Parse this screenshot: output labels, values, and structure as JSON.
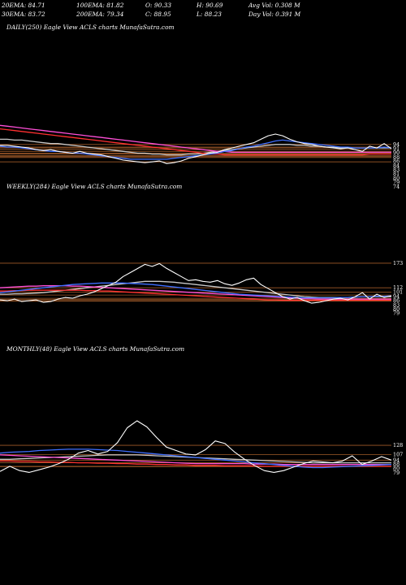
{
  "stats": {
    "ema20": "20EMA: 84.71",
    "ema100": "100EMA: 81.82",
    "open": "O: 90.33",
    "high": "H: 90.69",
    "avg_vol": "Avg Vol: 0.308 M",
    "ema30": "30EMA: 83.72",
    "ema200": "200EMA: 79.34",
    "close": "C: 88.95",
    "low": "L: 88.23",
    "day_vol": "Day Vol: 0.391 M"
  },
  "colors": {
    "background": "#000000",
    "price": "#ffffff",
    "ema_blue": "#3f6fff",
    "ema_magenta": "#ff4fd8",
    "ema_red": "#ff3030",
    "ema_grey": "#c8c8c8",
    "level_line": "#a05a28"
  },
  "chart_data": [
    {
      "type": "line",
      "title": "DAILY(250) Eagle  View  ACLS charts MunafaSutra.com",
      "tick_labels": [
        "94",
        "91",
        "90",
        "88",
        "86",
        "84",
        "83",
        "81",
        "80",
        "79",
        "74"
      ],
      "price_range": [
        62,
        120
      ],
      "levels": [
        94,
        91,
        90,
        88,
        86,
        84,
        83,
        81,
        80,
        79,
        74
      ],
      "series": [
        {
          "role": "price",
          "values": [
            93,
            93,
            92,
            91,
            90,
            88,
            87,
            88,
            86,
            85,
            84,
            86,
            84,
            83,
            82,
            80,
            78,
            76,
            75,
            74,
            73,
            74,
            75,
            72,
            73,
            75,
            78,
            80,
            82,
            84,
            85,
            88,
            90,
            92,
            94,
            96,
            100,
            104,
            106,
            104,
            100,
            97,
            95,
            94,
            92,
            91,
            90,
            89,
            90,
            88,
            86,
            92,
            90,
            95,
            89
          ]
        },
        {
          "role": "ema_blue",
          "values": [
            92,
            91,
            91,
            90,
            89,
            88,
            87,
            86,
            86,
            85,
            84,
            84,
            83,
            82,
            81,
            80,
            79,
            78,
            77,
            77,
            77,
            77,
            77,
            77,
            78,
            79,
            80,
            81,
            82,
            83,
            84,
            86,
            87,
            89,
            91,
            92,
            94,
            96,
            98,
            99,
            98,
            97,
            96,
            95,
            94,
            93,
            92,
            91,
            91,
            90,
            90,
            90,
            90,
            91,
            90
          ]
        },
        {
          "role": "ema_magenta",
          "values": [
            116,
            115,
            114,
            113,
            112,
            111,
            110,
            109,
            108,
            107,
            106,
            105,
            104,
            103,
            102,
            101,
            100,
            99,
            98,
            97,
            96,
            95,
            94,
            93,
            92,
            91,
            90,
            89,
            88,
            87,
            86,
            86,
            85,
            85,
            85,
            85,
            85,
            85,
            85,
            85,
            85,
            85,
            85,
            85,
            85,
            85,
            85,
            85,
            85,
            85,
            85,
            85,
            85,
            85,
            85
          ]
        },
        {
          "role": "ema_red",
          "values": [
            112,
            111,
            110,
            109,
            108,
            107,
            106,
            105,
            104,
            103,
            102,
            101,
            100,
            99,
            98,
            97,
            96,
            95,
            94,
            93,
            92,
            91,
            90,
            89,
            88,
            87,
            86,
            85,
            84,
            83,
            83,
            82,
            82,
            82,
            82,
            82,
            82,
            82,
            82,
            82,
            82,
            82,
            82,
            82,
            82,
            82,
            82,
            82,
            82,
            82,
            82,
            83,
            83,
            83,
            83
          ]
        },
        {
          "role": "ema_grey",
          "values": [
            100,
            100,
            99,
            99,
            98,
            97,
            96,
            95,
            95,
            94,
            93,
            92,
            91,
            90,
            89,
            88,
            87,
            86,
            85,
            84,
            84,
            83,
            83,
            82,
            82,
            82,
            83,
            83,
            84,
            85,
            86,
            87,
            88,
            89,
            90,
            91,
            92,
            93,
            94,
            94,
            94,
            93,
            93,
            92,
            92,
            91,
            91,
            90,
            90,
            90,
            90,
            90,
            90,
            90,
            90
          ]
        }
      ]
    },
    {
      "type": "line",
      "title": "WEEKLY(284) Eagle  View  ACLS charts MunafaSutra.com",
      "tick_labels": [
        "173",
        "112",
        "101",
        "94",
        "86",
        "83",
        "80",
        "79"
      ],
      "price_range": [
        60,
        185
      ],
      "levels": [
        173,
        112,
        101,
        94,
        86,
        83,
        80,
        79
      ],
      "series": [
        {
          "role": "price",
          "values": [
            82,
            80,
            84,
            78,
            80,
            82,
            76,
            78,
            84,
            88,
            86,
            92,
            96,
            102,
            110,
            118,
            126,
            140,
            150,
            160,
            170,
            165,
            172,
            160,
            150,
            140,
            130,
            132,
            128,
            126,
            130,
            122,
            118,
            124,
            132,
            136,
            120,
            110,
            100,
            90,
            84,
            88,
            80,
            74,
            76,
            80,
            84,
            86,
            82,
            90,
            100,
            84,
            96,
            88,
            92
          ]
        },
        {
          "role": "ema_blue",
          "values": [
            100,
            102,
            104,
            106,
            108,
            110,
            112,
            114,
            116,
            118,
            120,
            121,
            122,
            123,
            124,
            124,
            124,
            124,
            123,
            122,
            121,
            120,
            118,
            116,
            114,
            112,
            110,
            108,
            106,
            104,
            102,
            100,
            98,
            96,
            95,
            94,
            93,
            92,
            91,
            90,
            89,
            88,
            87,
            87,
            87,
            87,
            87,
            88,
            88,
            89,
            90,
            90,
            91,
            91,
            92
          ]
        },
        {
          "role": "ema_magenta",
          "values": [
            112,
            113,
            114,
            115,
            116,
            116,
            117,
            117,
            117,
            117,
            116,
            116,
            115,
            114,
            113,
            112,
            111,
            110,
            109,
            108,
            107,
            106,
            105,
            104,
            103,
            102,
            101,
            100,
            99,
            98,
            97,
            96,
            95,
            94,
            93,
            92,
            91,
            90,
            89,
            88,
            87,
            86,
            85,
            85,
            84,
            84,
            84,
            84,
            84,
            84,
            84,
            84,
            84,
            84,
            84
          ]
        },
        {
          "role": "ema_red",
          "values": [
            104,
            104,
            105,
            105,
            106,
            106,
            106,
            106,
            106,
            106,
            106,
            106,
            105,
            105,
            104,
            104,
            103,
            102,
            101,
            100,
            99,
            98,
            97,
            96,
            95,
            94,
            93,
            92,
            91,
            90,
            89,
            88,
            87,
            86,
            85,
            84,
            83,
            82,
            82,
            81,
            81,
            81,
            81,
            81,
            81,
            81,
            81,
            81,
            81,
            81,
            81,
            81,
            81,
            81,
            81
          ]
        },
        {
          "role": "ema_grey",
          "values": [
            96,
            96,
            97,
            97,
            98,
            99,
            100,
            102,
            104,
            106,
            108,
            110,
            112,
            114,
            116,
            118,
            120,
            122,
            124,
            126,
            128,
            128,
            128,
            127,
            126,
            124,
            122,
            120,
            118,
            116,
            114,
            112,
            110,
            108,
            106,
            104,
            102,
            100,
            98,
            96,
            94,
            92,
            90,
            89,
            88,
            88,
            88,
            88,
            88,
            89,
            90,
            90,
            90,
            90,
            90
          ]
        }
      ]
    },
    {
      "type": "line",
      "title": "MONTHLY(48) Eagle  View  ACLS charts MunafaSutra.com",
      "tick_labels": [
        "128",
        "107",
        "94",
        "88",
        "80",
        "79"
      ],
      "price_range": [
        50,
        195
      ],
      "levels": [
        128,
        107,
        94,
        88,
        80,
        79
      ],
      "series": [
        {
          "role": "price",
          "values": [
            68,
            80,
            70,
            66,
            72,
            78,
            86,
            96,
            110,
            116,
            108,
            114,
            134,
            168,
            184,
            170,
            146,
            124,
            116,
            108,
            106,
            118,
            138,
            132,
            112,
            96,
            82,
            70,
            66,
            70,
            78,
            86,
            92,
            90,
            88,
            92,
            104,
            84,
            92,
            102,
            94
          ]
        },
        {
          "role": "ema_blue",
          "values": [
            110,
            112,
            113,
            114,
            116,
            117,
            118,
            119,
            119,
            119,
            118,
            117,
            116,
            114,
            112,
            110,
            108,
            106,
            104,
            102,
            100,
            98,
            96,
            94,
            92,
            90,
            88,
            86,
            84,
            82,
            80,
            78,
            77,
            77,
            78,
            79,
            80,
            81,
            82,
            83,
            84
          ]
        },
        {
          "role": "ema_magenta",
          "values": [
            106,
            105,
            104,
            103,
            102,
            101,
            100,
            99,
            98,
            97,
            96,
            95,
            94,
            93,
            92,
            91,
            90,
            89,
            88,
            87,
            86,
            86,
            86,
            86,
            86,
            86,
            85,
            85,
            85,
            84,
            84,
            84,
            84,
            84,
            84,
            84,
            84,
            84,
            84,
            84,
            84
          ]
        },
        {
          "role": "ema_red",
          "values": [
            92,
            92,
            91,
            91,
            90,
            90,
            89,
            89,
            88,
            88,
            87,
            87,
            86,
            86,
            85,
            85,
            84,
            84,
            83,
            83,
            82,
            82,
            82,
            81,
            81,
            81,
            81,
            80,
            80,
            80,
            80,
            80,
            80,
            80,
            80,
            80,
            80,
            80,
            80,
            80,
            80
          ]
        },
        {
          "role": "ema_grey",
          "values": [
            96,
            96,
            97,
            98,
            99,
            100,
            101,
            102,
            103,
            104,
            105,
            106,
            106,
            106,
            106,
            105,
            104,
            103,
            102,
            101,
            100,
            99,
            98,
            97,
            96,
            95,
            94,
            93,
            92,
            91,
            90,
            89,
            88,
            88,
            88,
            88,
            88,
            88,
            88,
            88,
            88
          ]
        }
      ]
    }
  ]
}
